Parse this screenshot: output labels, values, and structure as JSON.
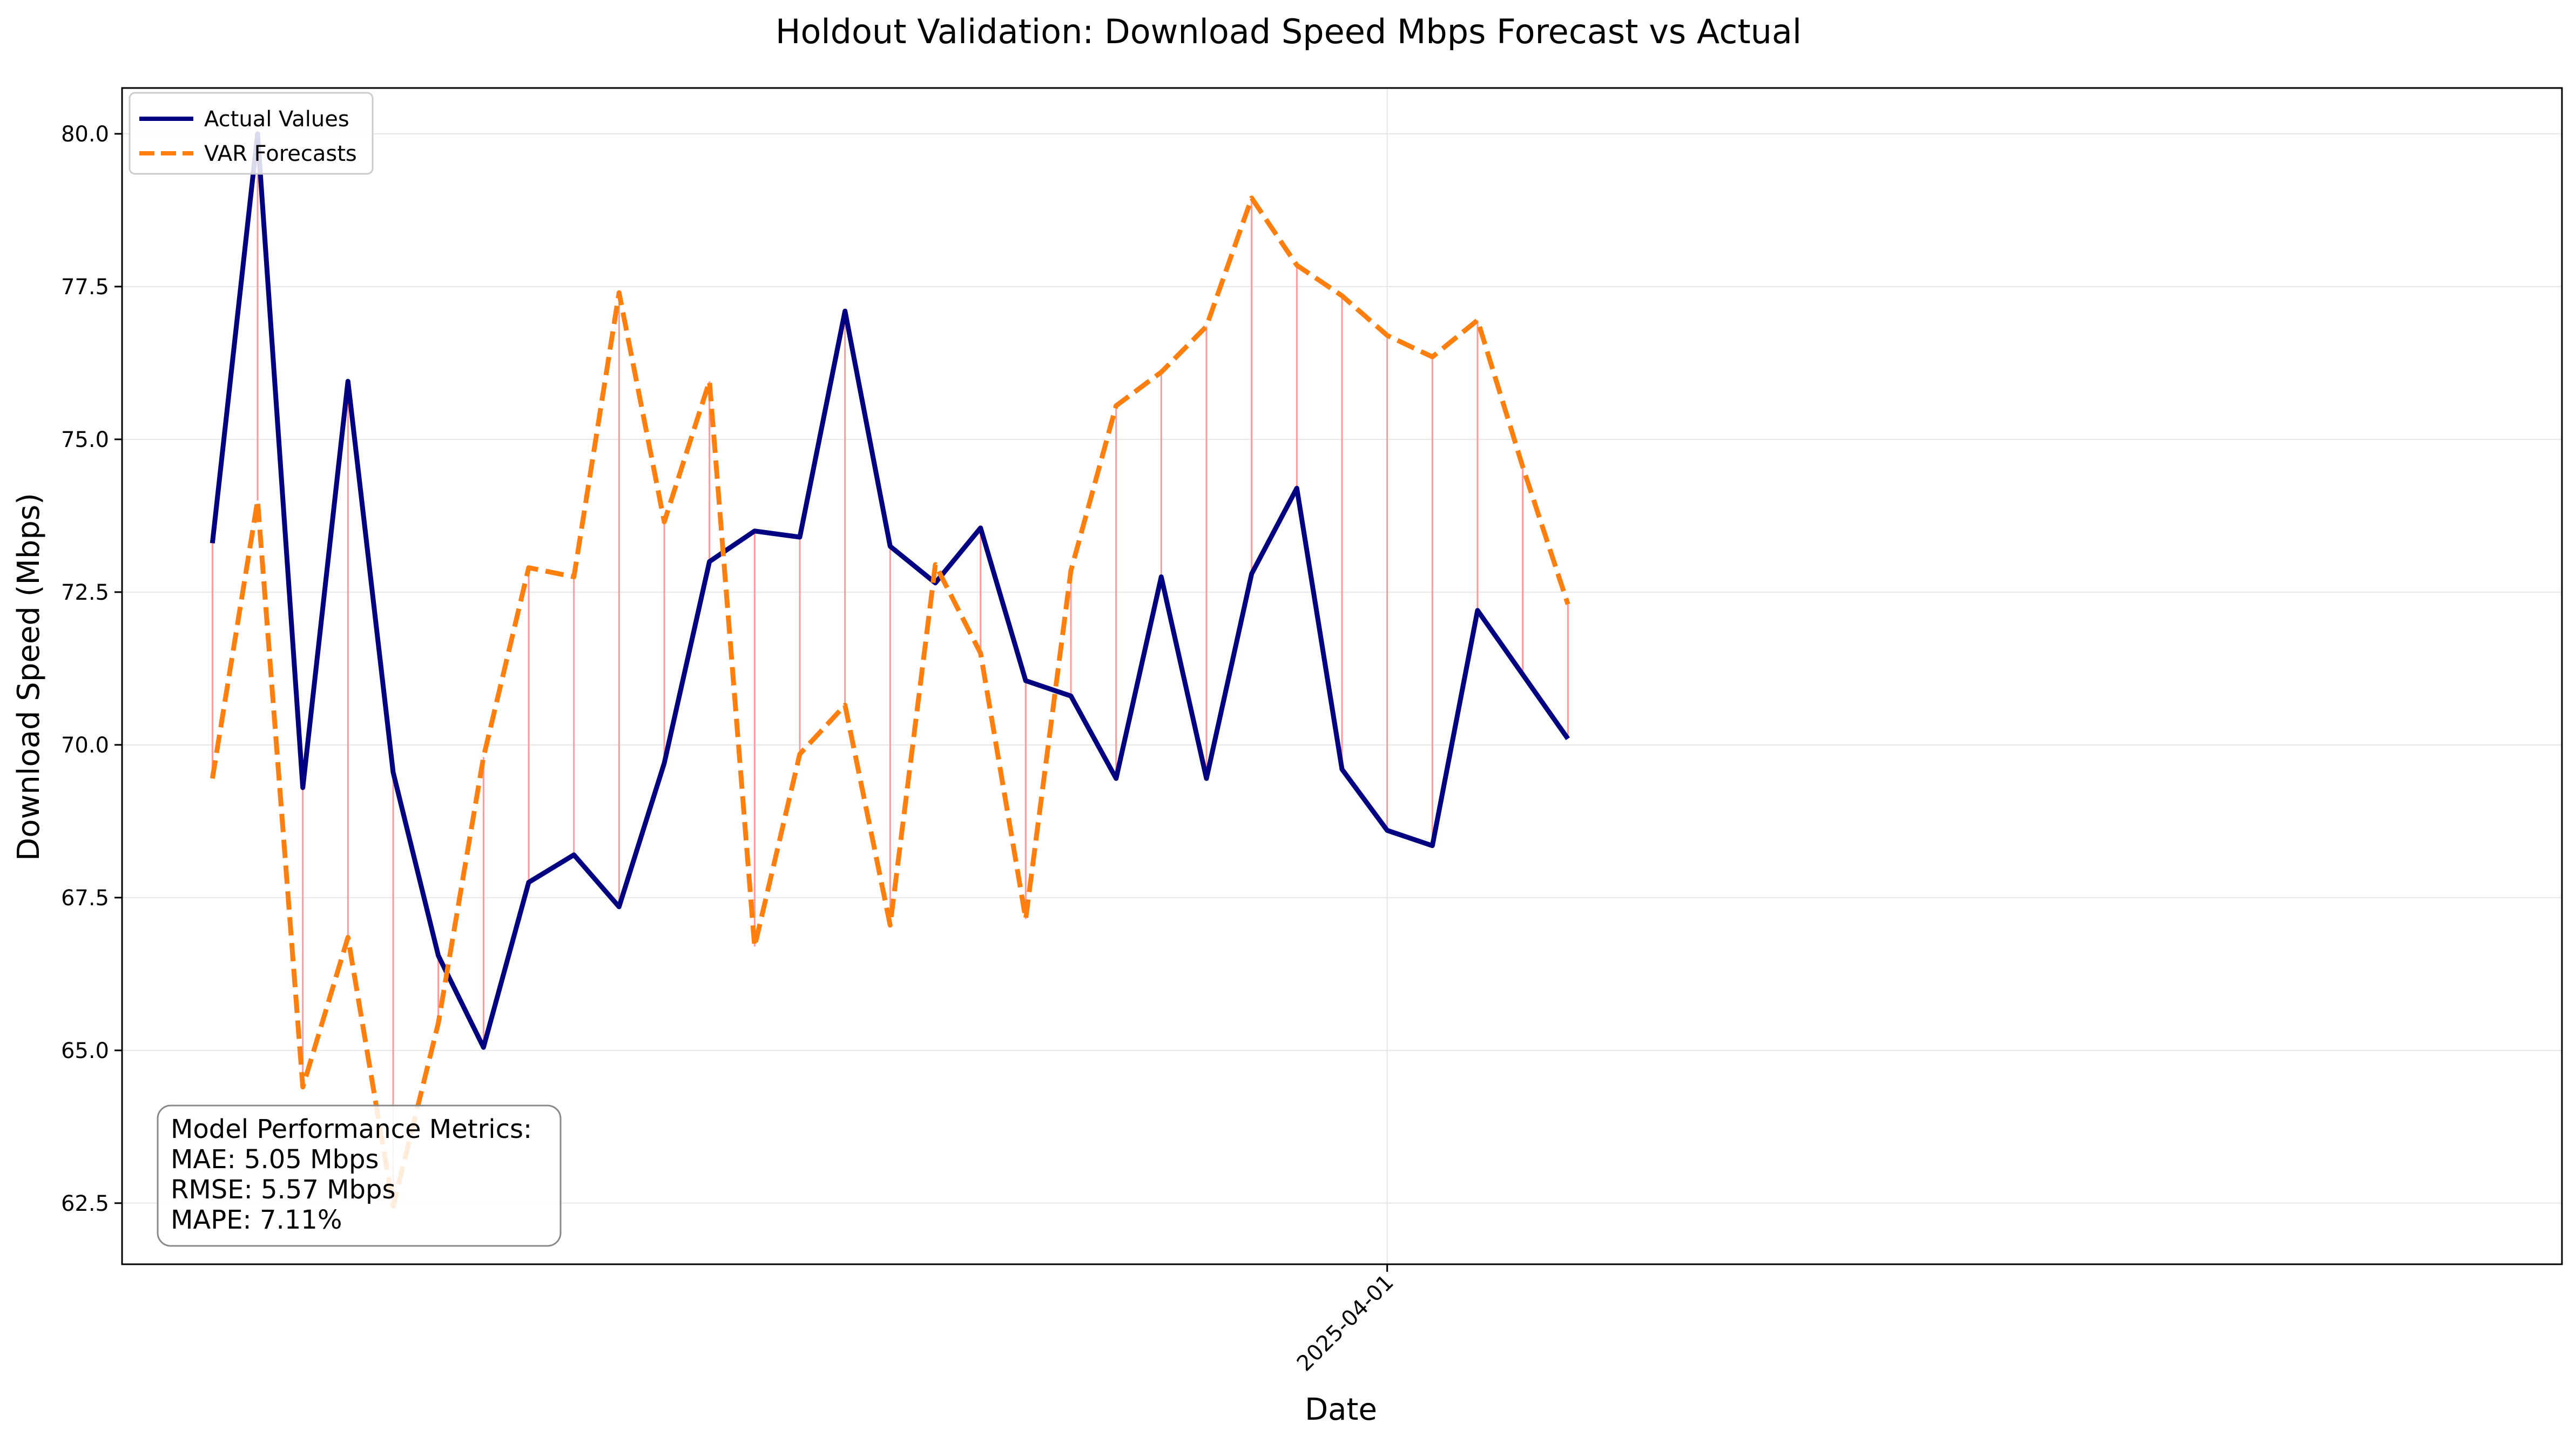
{
  "chart_data": {
    "type": "line",
    "title": "Holdout Validation: Download Speed Mbps Forecast vs Actual",
    "xlabel": "Date",
    "ylabel": "Download Speed (Mbps)",
    "ylim": [
      61.5,
      80.75
    ],
    "y_ticks": [
      "62.5",
      "65.0",
      "67.5",
      "70.0",
      "72.5",
      "75.0",
      "77.5",
      "80.0"
    ],
    "x_ticks": [
      {
        "label": "2025-04-01",
        "x": "2025-04-01"
      }
    ],
    "xlim": [
      "2025-03-04",
      "2025-04-27"
    ],
    "x": [
      "2025-03-06",
      "2025-03-07",
      "2025-03-08",
      "2025-03-09",
      "2025-03-10",
      "2025-03-11",
      "2025-03-12",
      "2025-03-13",
      "2025-03-14",
      "2025-03-15",
      "2025-03-16",
      "2025-03-17",
      "2025-03-18",
      "2025-03-19",
      "2025-03-20",
      "2025-03-21",
      "2025-03-22",
      "2025-03-23",
      "2025-03-24",
      "2025-03-25",
      "2025-03-26",
      "2025-03-27",
      "2025-03-28",
      "2025-03-29",
      "2025-03-30",
      "2025-03-31",
      "2025-04-01",
      "2025-04-02",
      "2025-04-03",
      "2025-04-04",
      "2025-04-05"
    ],
    "series": [
      {
        "name": "Actual Values",
        "color": "#000080",
        "style": "solid",
        "values": [
          73.3,
          80.0,
          69.3,
          75.95,
          69.55,
          66.55,
          65.05,
          67.75,
          68.2,
          67.35,
          69.7,
          73.0,
          73.5,
          73.4,
          77.1,
          73.25,
          72.65,
          73.55,
          71.05,
          70.8,
          69.45,
          72.75,
          69.45,
          72.8,
          74.2,
          69.6,
          68.6,
          68.35,
          72.2,
          71.15,
          70.1
        ]
      },
      {
        "name": "VAR Forecasts",
        "color": "#ff7f0e",
        "style": "dashed",
        "values": [
          69.45,
          74.0,
          64.4,
          66.85,
          62.45,
          65.45,
          69.8,
          72.9,
          72.75,
          77.4,
          73.65,
          75.95,
          66.7,
          69.85,
          70.65,
          67.05,
          72.95,
          71.5,
          67.15,
          72.85,
          75.55,
          76.1,
          76.85,
          78.95,
          77.85,
          77.35,
          76.7,
          76.35,
          76.95,
          74.55,
          72.3
        ]
      }
    ],
    "error_line_color": "#ff9999",
    "grid": true,
    "legend_position": "top-left",
    "metrics_box": {
      "position": "bottom-left",
      "lines": [
        "Model Performance Metrics:",
        "MAE: 5.05 Mbps",
        "RMSE: 5.57 Mbps",
        "MAPE: 7.11%"
      ]
    }
  }
}
